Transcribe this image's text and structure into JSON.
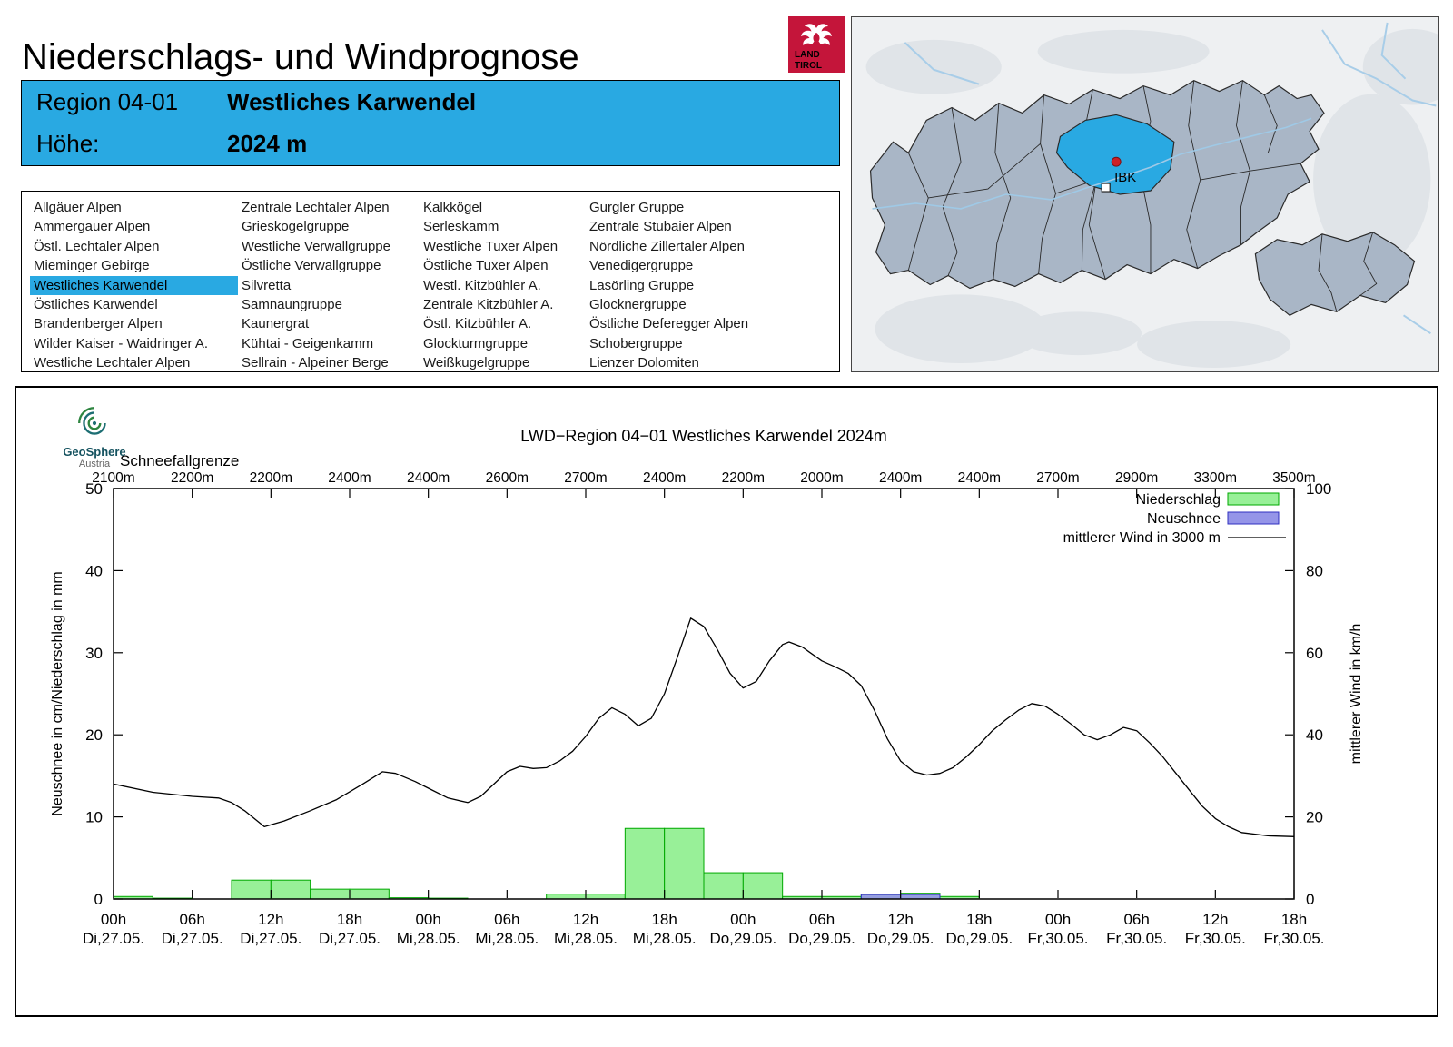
{
  "page": {
    "title": "Niederschlags- und Windprognose"
  },
  "logo": {
    "line1": "LAND",
    "line2": "TIROL"
  },
  "region_header": {
    "region_label": "Region 04-01",
    "region_name": "Westliches Karwendel",
    "altitude_label": "Höhe:",
    "altitude_value": "2024 m"
  },
  "map": {
    "marker_label": "IBK"
  },
  "provider": {
    "name": "GeoSphere",
    "country": "Austria"
  },
  "region_list": {
    "selected": "Westliches Karwendel",
    "columns": [
      [
        "Allgäuer Alpen",
        "Ammergauer Alpen",
        "Östl. Lechtaler Alpen",
        "Mieminger Gebirge",
        "Westliches Karwendel",
        "Östliches Karwendel",
        "Brandenberger Alpen",
        "Wilder Kaiser - Waidringer A.",
        "Westliche Lechtaler Alpen"
      ],
      [
        "Zentrale Lechtaler Alpen",
        "Grieskogelgruppe",
        "Westliche Verwallgruppe",
        "Östliche Verwallgruppe",
        "Silvretta",
        "Samnaungruppe",
        "Kaunergrat",
        "Kühtai - Geigenkamm",
        "Sellrain - Alpeiner Berge"
      ],
      [
        "Kalkkögel",
        "Serleskamm",
        "Westliche Tuxer Alpen",
        "Östliche Tuxer Alpen",
        "Westl. Kitzbühler A.",
        "Zentrale Kitzbühler A.",
        "Östl. Kitzbühler A.",
        "Glockturmgruppe",
        "Weißkugelgruppe"
      ],
      [
        "Gurgler Gruppe",
        "Zentrale Stubaier Alpen",
        "Nördliche Zillertaler Alpen",
        "Venedigergruppe",
        "Lasörling Gruppe",
        "Glocknergruppe",
        "Östliche Deferegger Alpen",
        "Schobergruppe",
        "Lienzer Dolomiten"
      ]
    ]
  },
  "chart_data": {
    "type": "line+bar",
    "title": "LWD−Region 04−01 Westliches Karwendel 2024m",
    "snowline_label": "Schneefallgrenze",
    "snowline_values": [
      "2100m",
      "2200m",
      "2200m",
      "2400m",
      "2400m",
      "2600m",
      "2700m",
      "2400m",
      "2200m",
      "2000m",
      "2400m",
      "2400m",
      "2700m",
      "2900m",
      "3300m",
      "3500m"
    ],
    "ylabel_left": "Neuschnee in cm/Niederschlag in mm",
    "ylabel_right": "mittlerer Wind in km/h",
    "ylim_left": [
      0,
      50
    ],
    "ylim_right": [
      0,
      100
    ],
    "yticks_left": [
      0,
      10,
      20,
      30,
      40,
      50
    ],
    "yticks_right": [
      0,
      20,
      40,
      60,
      80,
      100
    ],
    "x_hours_total": 90,
    "xticks": [
      {
        "hour": 0,
        "time": "00h",
        "date": "Di,27.05."
      },
      {
        "hour": 6,
        "time": "06h",
        "date": "Di,27.05."
      },
      {
        "hour": 12,
        "time": "12h",
        "date": "Di,27.05."
      },
      {
        "hour": 18,
        "time": "18h",
        "date": "Di,27.05."
      },
      {
        "hour": 24,
        "time": "00h",
        "date": "Mi,28.05."
      },
      {
        "hour": 30,
        "time": "06h",
        "date": "Mi,28.05."
      },
      {
        "hour": 36,
        "time": "12h",
        "date": "Mi,28.05."
      },
      {
        "hour": 42,
        "time": "18h",
        "date": "Mi,28.05."
      },
      {
        "hour": 48,
        "time": "00h",
        "date": "Do,29.05."
      },
      {
        "hour": 54,
        "time": "06h",
        "date": "Do,29.05."
      },
      {
        "hour": 60,
        "time": "12h",
        "date": "Do,29.05."
      },
      {
        "hour": 66,
        "time": "18h",
        "date": "Do,29.05."
      },
      {
        "hour": 72,
        "time": "00h",
        "date": "Fr,30.05."
      },
      {
        "hour": 78,
        "time": "06h",
        "date": "Fr,30.05."
      },
      {
        "hour": 84,
        "time": "12h",
        "date": "Fr,30.05."
      },
      {
        "hour": 90,
        "time": "18h",
        "date": "Fr,30.05."
      }
    ],
    "legend": [
      {
        "label": "Niederschlag",
        "type": "bar",
        "color": "#98f098",
        "border": "#00a800"
      },
      {
        "label": "Neuschnee",
        "type": "bar",
        "color": "#9595e8",
        "border": "#3030c0"
      },
      {
        "label": "mittlerer Wind in 3000 m",
        "type": "line",
        "color": "#000000"
      }
    ],
    "precip_mm": {
      "block_hours": 3,
      "values": [
        0.3,
        0.1,
        0,
        2.3,
        2.3,
        1.2,
        1.2,
        0.15,
        0.1,
        0,
        0,
        0.6,
        0.6,
        8.6,
        8.6,
        3.2,
        3.2,
        0.3,
        0.3,
        0.5,
        0.7,
        0.3,
        0,
        0,
        0,
        0,
        0,
        0,
        0,
        0
      ]
    },
    "neuschnee_cm": {
      "block_hours": 3,
      "values": [
        0,
        0,
        0,
        0,
        0,
        0,
        0,
        0,
        0,
        0,
        0,
        0,
        0,
        0,
        0,
        0,
        0,
        0,
        0,
        0.55,
        0.55,
        0,
        0,
        0,
        0,
        0,
        0,
        0,
        0,
        0
      ]
    },
    "wind_kmh": [
      [
        0,
        28
      ],
      [
        3,
        26
      ],
      [
        6,
        25
      ],
      [
        8,
        24.6
      ],
      [
        9,
        23.5
      ],
      [
        10,
        21.5
      ],
      [
        11.5,
        17.6
      ],
      [
        13,
        19
      ],
      [
        15,
        21.5
      ],
      [
        17,
        24.2
      ],
      [
        19,
        28
      ],
      [
        20.5,
        31
      ],
      [
        21.5,
        30.6
      ],
      [
        23,
        28.6
      ],
      [
        24,
        27
      ],
      [
        25.5,
        24.6
      ],
      [
        27,
        23.5
      ],
      [
        28,
        25
      ],
      [
        29,
        28
      ],
      [
        30,
        31
      ],
      [
        31,
        32.3
      ],
      [
        32,
        31.8
      ],
      [
        33,
        32
      ],
      [
        34,
        33.6
      ],
      [
        35,
        36
      ],
      [
        36,
        39.6
      ],
      [
        37,
        44
      ],
      [
        38,
        46.6
      ],
      [
        39,
        45
      ],
      [
        40,
        42.2
      ],
      [
        41,
        44
      ],
      [
        42,
        50
      ],
      [
        43,
        59
      ],
      [
        44,
        68.4
      ],
      [
        45,
        66.4
      ],
      [
        46,
        61
      ],
      [
        47,
        55
      ],
      [
        48,
        51.4
      ],
      [
        49,
        53
      ],
      [
        50,
        58
      ],
      [
        51,
        62
      ],
      [
        51.5,
        62.6
      ],
      [
        52.5,
        61.4
      ],
      [
        54,
        58
      ],
      [
        55,
        56.6
      ],
      [
        56,
        55
      ],
      [
        57,
        52
      ],
      [
        58,
        46
      ],
      [
        59,
        39
      ],
      [
        60,
        33.6
      ],
      [
        61,
        31
      ],
      [
        62,
        30.2
      ],
      [
        63,
        30.6
      ],
      [
        64,
        32
      ],
      [
        65,
        34.6
      ],
      [
        66,
        37.6
      ],
      [
        67,
        41
      ],
      [
        68,
        43.6
      ],
      [
        69,
        46
      ],
      [
        70,
        47.6
      ],
      [
        71,
        47
      ],
      [
        72,
        45
      ],
      [
        73,
        42.6
      ],
      [
        74,
        40
      ],
      [
        75,
        38.8
      ],
      [
        76,
        40
      ],
      [
        77,
        41.8
      ],
      [
        78,
        41
      ],
      [
        79,
        38
      ],
      [
        80,
        34.6
      ],
      [
        81,
        30.6
      ],
      [
        82,
        26.6
      ],
      [
        83,
        22.6
      ],
      [
        84,
        19.6
      ],
      [
        85,
        17.6
      ],
      [
        86,
        16.2
      ],
      [
        88,
        15.4
      ],
      [
        90,
        15.2
      ]
    ]
  }
}
